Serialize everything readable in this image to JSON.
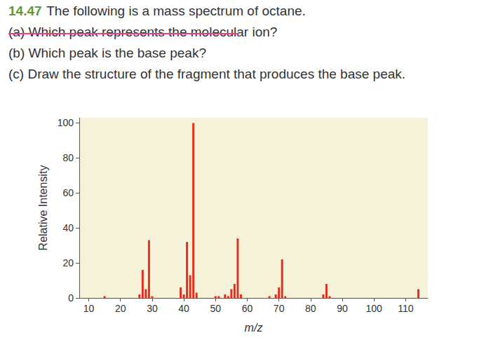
{
  "chart_data": {
    "type": "bar",
    "title": "14.47 The following is a mass spectrum of octane.",
    "annotations": [
      "(a) Which peak represents the molecular ion?",
      "(b) Which peak is the base peak?",
      "(c) Draw the structure of the fragment that produces the base peak."
    ],
    "x_label": "m/z",
    "y_label": "Relative Intensity",
    "x": [
      15,
      26,
      27,
      28,
      29,
      30,
      39,
      40,
      41,
      42,
      43,
      44,
      50,
      51,
      53,
      54,
      55,
      56,
      57,
      58,
      67,
      69,
      70,
      71,
      72,
      84,
      85,
      86,
      114
    ],
    "values": [
      1,
      2,
      16,
      5,
      33,
      1,
      6,
      2,
      32,
      13,
      100,
      3,
      1,
      1,
      2,
      1,
      5,
      8,
      34,
      2,
      1,
      2,
      6,
      22,
      1,
      2,
      8,
      1,
      5
    ],
    "color": "#e0301e",
    "xlim": [
      7,
      117
    ],
    "xticks": [
      10,
      20,
      30,
      40,
      50,
      60,
      70,
      80,
      90,
      100,
      110
    ],
    "ylim": [
      0,
      103
    ],
    "yticks": [
      0,
      20,
      40,
      60,
      80,
      100
    ],
    "grid": false
  }
}
